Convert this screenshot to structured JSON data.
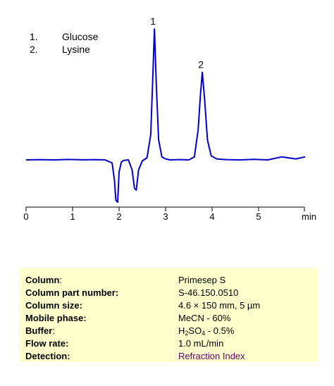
{
  "chart_data": {
    "type": "line",
    "legend": [
      {
        "num": "1.",
        "name": "Glucose"
      },
      {
        "num": "2.",
        "name": "Lysine"
      }
    ],
    "xlabel": "min",
    "xlim": [
      0,
      6
    ],
    "x_ticks": [
      "0",
      "1",
      "2",
      "3",
      "4",
      "5"
    ],
    "peaks": [
      {
        "label": "1",
        "x": 2.76
      },
      {
        "label": "2",
        "x": 3.79
      }
    ],
    "series": [
      {
        "color": "#0000cc",
        "x": [
          0,
          0.3,
          0.6,
          0.9,
          1.2,
          1.5,
          1.7,
          1.85,
          1.9,
          1.93,
          1.97,
          2.0,
          2.05,
          2.1,
          2.2,
          2.28,
          2.33,
          2.37,
          2.42,
          2.5,
          2.6,
          2.68,
          2.72,
          2.76,
          2.8,
          2.85,
          2.92,
          3.0,
          3.1,
          3.3,
          3.5,
          3.62,
          3.7,
          3.75,
          3.79,
          3.84,
          3.9,
          3.98,
          4.1,
          4.3,
          4.6,
          4.9,
          5.2,
          5.5,
          5.8,
          6.0
        ],
        "y": [
          0.0,
          0.003,
          0.0,
          0.004,
          0.001,
          0.003,
          0.0,
          -0.03,
          -0.2,
          -0.4,
          -0.42,
          -0.12,
          -0.02,
          -0.005,
          0.0,
          -0.1,
          -0.28,
          -0.3,
          -0.1,
          -0.01,
          0.02,
          0.25,
          0.75,
          1.3,
          0.75,
          0.2,
          0.03,
          0.01,
          0.0,
          0.003,
          0.0,
          0.03,
          0.3,
          0.65,
          0.87,
          0.6,
          0.2,
          0.04,
          0.01,
          0.003,
          0.0,
          0.005,
          0.0,
          0.03,
          0.01,
          0.03
        ]
      }
    ]
  },
  "conditions": [
    {
      "label": "Column",
      "suffix": ":",
      "value": "Primesep S"
    },
    {
      "label": "Column part number:",
      "suffix": "",
      "value": "S-46.150.0510"
    },
    {
      "label": "Column size:",
      "suffix": "",
      "value": "4.6 × 150 mm, 5 µm"
    },
    {
      "label": "Mobile phase:",
      "suffix": "",
      "value": "MeCN - 60%"
    },
    {
      "label": "Buffer",
      "suffix": ":",
      "value_pre": "H",
      "value_sub1": "2",
      "value_mid": "SO",
      "value_sub2": "4",
      "value_post": " - 0.5%"
    },
    {
      "label": "Flow rate:",
      "suffix": "",
      "value": "1.0 mL/min"
    },
    {
      "label": "Detection:",
      "suffix": "",
      "value": "Refraction Index"
    }
  ]
}
